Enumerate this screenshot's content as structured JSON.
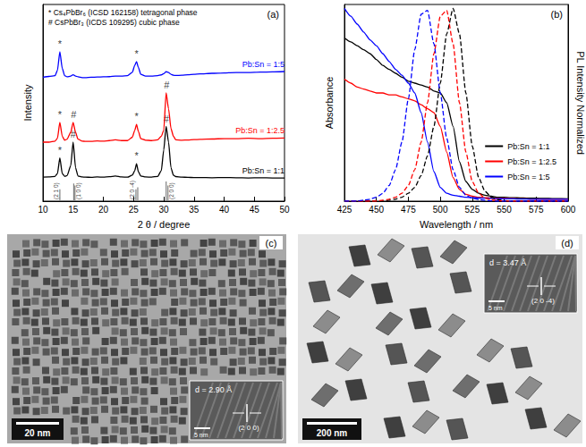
{
  "chart_data": [
    {
      "type": "line",
      "title": "(a)",
      "x_label": "2 θ / degree",
      "y_label": "Intensity",
      "xlim": [
        10,
        50
      ],
      "xticks": [
        10,
        15,
        20,
        25,
        30,
        35,
        40,
        45,
        50
      ],
      "ylim": [
        0,
        100
      ],
      "tick_labels": "x",
      "notes": [
        "* Cs₄PbBr₆ (ICSD 162158) tetragonal phase",
        "# CsPbBr₃ (ICDS 109295) cubic phase"
      ],
      "x": [
        10,
        11,
        12,
        12.4,
        12.8,
        13.2,
        13.6,
        14,
        14.6,
        15,
        15.4,
        15.8,
        16.5,
        17,
        18,
        19,
        20,
        21,
        22,
        23,
        24,
        24.8,
        25.2,
        25.5,
        25.8,
        26.2,
        27,
        28,
        29,
        29.6,
        30,
        30.4,
        30.8,
        31.2,
        31.6,
        32,
        33,
        34,
        35,
        36,
        38,
        40,
        42,
        44,
        46,
        48,
        50
      ],
      "series": [
        {
          "name": "Pb:Sn = 1:1",
          "color": "#000000",
          "values": [
            12.2,
            12.3,
            12.6,
            14,
            22,
            14,
            12.6,
            13,
            18,
            30,
            17,
            12.8,
            12.3,
            12.2,
            12.1,
            12.3,
            12.2,
            12.4,
            12.8,
            12.3,
            12.2,
            13.2,
            15.5,
            19,
            15,
            12.8,
            12.3,
            12.2,
            12.6,
            15.5,
            26,
            38,
            30,
            17,
            13.2,
            12.5,
            12.2,
            12.1,
            12,
            12,
            11.9,
            12,
            11.9,
            11.8,
            11.9,
            11.8,
            11.8
          ]
        },
        {
          "name": "Pb:Sn = 1:2.5",
          "color": "#ff0000",
          "values": [
            30,
            30,
            30.5,
            32,
            40,
            33,
            31,
            31.5,
            35,
            40,
            35,
            31.5,
            30.5,
            30.4,
            30.4,
            30.6,
            30.5,
            30.8,
            31.2,
            30.8,
            30.8,
            32.5,
            36,
            39,
            35.5,
            31.8,
            31,
            30.8,
            31.2,
            33,
            36,
            55,
            47,
            37,
            33,
            31.2,
            31,
            31.1,
            31.3,
            31.4,
            31.6,
            31.8,
            31.8,
            32,
            31.8,
            32,
            32.1
          ]
        },
        {
          "name": "Pb:Sn = 1:5",
          "color": "#0000ff",
          "values": [
            63,
            63.4,
            63.8,
            66.5,
            76,
            67.5,
            63.8,
            63.2,
            63.6,
            64.3,
            63.6,
            63.2,
            62.8,
            62.8,
            63,
            63.1,
            63.2,
            63.3,
            63.6,
            63.6,
            63.8,
            65.5,
            69,
            71,
            68,
            64.5,
            63.6,
            63.6,
            63.8,
            64.2,
            64.8,
            65.8,
            65.4,
            64.5,
            64,
            63.9,
            64,
            64.3,
            64.5,
            64.7,
            65,
            65.2,
            65.4,
            65.4,
            65.6,
            65.7,
            65.9
          ]
        }
      ],
      "annotations": [
        {
          "text": "*",
          "x": 12.8,
          "y": 26
        },
        {
          "text": "#",
          "x": 15.0,
          "y": 34
        },
        {
          "text": "*",
          "x": 25.5,
          "y": 23
        },
        {
          "text": "#",
          "x": 30.4,
          "y": 42
        },
        {
          "text": "*",
          "x": 12.8,
          "y": 44
        },
        {
          "text": "#",
          "x": 15.1,
          "y": 44
        },
        {
          "text": "*",
          "x": 25.5,
          "y": 43
        },
        {
          "text": "#",
          "x": 30.5,
          "y": 59
        },
        {
          "text": "*",
          "x": 12.8,
          "y": 80
        },
        {
          "text": "*",
          "x": 25.5,
          "y": 75
        }
      ],
      "reference": {
        "color": "#808080",
        "x": [
          12.8,
          15.1,
          15.3,
          25.4,
          25.7,
          30.4,
          30.7
        ],
        "values": [
          6,
          9,
          8,
          6,
          7,
          10,
          8
        ],
        "labels": [
          {
            "text": "(2 1 0)",
            "x": 12.1
          },
          {
            "text": "(1 0 0)",
            "x": 15.9
          },
          {
            "text": "(2 0 -4)",
            "x": 24.8
          },
          {
            "text": "(2 0 0)",
            "x": 31.3
          }
        ]
      }
    },
    {
      "type": "line",
      "title": "(b)",
      "x_label": "Wavelength / nm",
      "y_label": "Absorbance",
      "y2_label": "PL Intensity Normalized",
      "xlim": [
        425,
        600
      ],
      "xticks": [
        425,
        450,
        475,
        500,
        525,
        550,
        575,
        600
      ],
      "ylim": [
        0,
        1
      ],
      "y2lim": [
        0,
        1
      ],
      "tick_labels": "x",
      "legend": "lower right",
      "x": [
        425,
        430,
        435,
        440,
        445,
        450,
        455,
        460,
        465,
        470,
        475,
        480,
        485,
        490,
        495,
        500,
        505,
        510,
        515,
        520,
        525,
        530,
        535,
        540,
        545,
        550,
        555,
        560,
        565,
        570,
        575,
        580,
        585,
        590,
        595,
        600
      ],
      "series": [
        {
          "name": "Pb:Sn = 1:1",
          "color": "#000000",
          "line_style": "solid",
          "values": [
            0.83,
            0.81,
            0.79,
            0.77,
            0.75,
            0.72,
            0.69,
            0.67,
            0.65,
            0.63,
            0.61,
            0.6,
            0.59,
            0.58,
            0.56,
            0.55,
            0.5,
            0.38,
            0.2,
            0.1,
            0.06,
            0.04,
            0.03,
            0.025,
            0.02,
            0.02,
            0.018,
            0.017,
            0.016,
            0.015,
            0.015,
            0.014,
            0.014,
            0.013,
            0.013,
            0.012
          ]
        },
        {
          "name": "Pb:Sn = 1:2.5",
          "color": "#ff0000",
          "line_style": "solid",
          "values": [
            0.62,
            0.6,
            0.58,
            0.57,
            0.56,
            0.55,
            0.55,
            0.54,
            0.54,
            0.53,
            0.52,
            0.51,
            0.49,
            0.47,
            0.45,
            0.38,
            0.25,
            0.12,
            0.06,
            0.035,
            0.025,
            0.02,
            0.018,
            0.016,
            0.015,
            0.014,
            0.013,
            0.012,
            0.012,
            0.011,
            0.011,
            0.01,
            0.01,
            0.01,
            0.01,
            0.01
          ]
        },
        {
          "name": "Pb:Sn = 1:5",
          "color": "#0000ff",
          "line_style": "solid",
          "values": [
            0.98,
            0.94,
            0.9,
            0.86,
            0.82,
            0.79,
            0.75,
            0.71,
            0.67,
            0.64,
            0.6,
            0.55,
            0.45,
            0.3,
            0.15,
            0.07,
            0.04,
            0.03,
            0.025,
            0.02,
            0.018,
            0.016,
            0.015,
            0.014,
            0.013,
            0.012,
            0.012,
            0.011,
            0.011,
            0.01,
            0.01,
            0.01,
            0.01,
            0.01,
            0.01,
            0.01
          ]
        },
        {
          "name": "Pb:Sn = 1:1",
          "color": "#000000",
          "line_style": "dashed",
          "axis": "y2",
          "values": [
            0,
            0,
            0,
            0,
            0,
            0,
            0,
            0.005,
            0.01,
            0.02,
            0.04,
            0.07,
            0.13,
            0.23,
            0.38,
            0.6,
            0.85,
            0.98,
            0.85,
            0.55,
            0.28,
            0.12,
            0.05,
            0.02,
            0.008,
            0.003,
            0.001,
            0,
            0,
            0,
            0,
            0,
            0,
            0,
            0,
            0
          ]
        },
        {
          "name": "Pb:Sn = 1:2.5",
          "color": "#ff0000",
          "line_style": "dashed",
          "axis": "y2",
          "values": [
            0,
            0,
            0,
            0,
            0,
            0,
            0.005,
            0.01,
            0.02,
            0.04,
            0.08,
            0.16,
            0.3,
            0.5,
            0.75,
            0.94,
            0.97,
            0.8,
            0.5,
            0.25,
            0.1,
            0.04,
            0.015,
            0.006,
            0.003,
            0.001,
            0,
            0,
            0,
            0,
            0,
            0,
            0,
            0,
            0,
            0
          ]
        },
        {
          "name": "Pb:Sn = 1:5",
          "color": "#0000ff",
          "line_style": "dashed",
          "axis": "y2",
          "values": [
            0,
            0,
            0,
            0.005,
            0.01,
            0.02,
            0.04,
            0.08,
            0.16,
            0.3,
            0.52,
            0.77,
            0.95,
            0.97,
            0.8,
            0.55,
            0.32,
            0.16,
            0.07,
            0.03,
            0.015,
            0.008,
            0.004,
            0.002,
            0,
            0,
            0,
            0,
            0,
            0,
            0,
            0,
            0,
            0,
            0,
            0
          ]
        }
      ]
    },
    {
      "type": "micrograph",
      "title": "(c)",
      "scale_bar": "20 nm",
      "inset": {
        "d_spacing": "d = 2.90 Å",
        "plane": "(2 0 0)",
        "scale_bar": "5 nm"
      }
    },
    {
      "type": "micrograph",
      "title": "(d)",
      "scale_bar": "200 nm",
      "inset": {
        "d_spacing": "d = 3.47 Å",
        "plane": "(2 0 -4)",
        "scale_bar": "5 nm"
      }
    }
  ]
}
